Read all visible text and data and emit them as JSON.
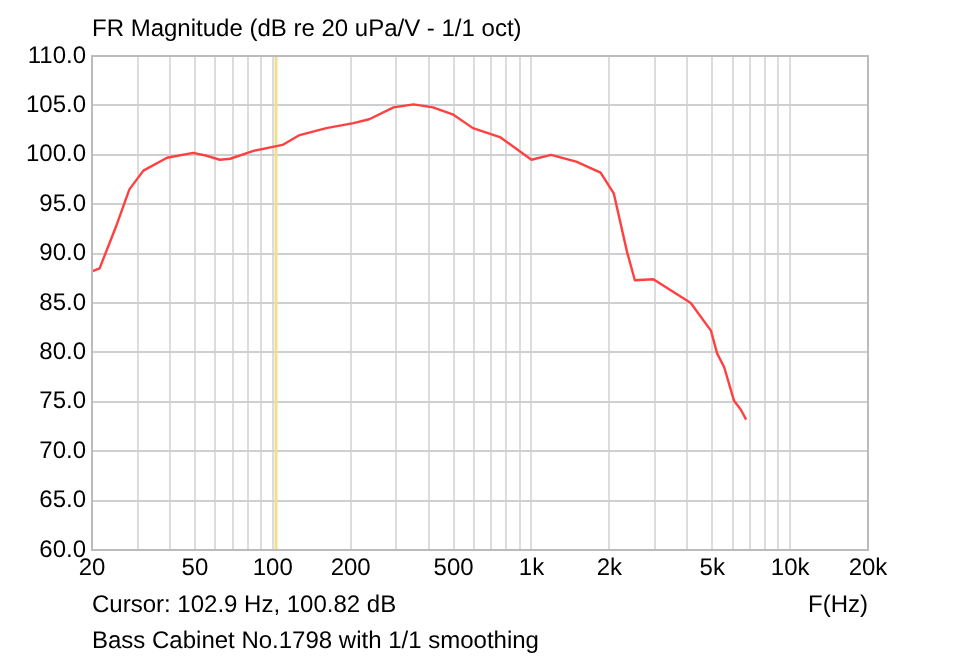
{
  "chart_data": {
    "type": "line",
    "title": "FR Magnitude (dB re 20 uPa/V - 1/1 oct)",
    "xlabel": "F(Hz)",
    "annotations": [
      "Cursor: 102.9 Hz, 100.82 dB",
      "Bass Cabinet No.1798 with 1/1 smoothing"
    ],
    "x": [
      20,
      21.4,
      24.9,
      27.9,
      31.6,
      39,
      49.2,
      55.6,
      62.4,
      68.5,
      84.2,
      100,
      109,
      127,
      161,
      205,
      236,
      293,
      350,
      416,
      496,
      594,
      755,
      1000,
      1190,
      1490,
      1850,
      2080,
      2340,
      2510,
      2960,
      4130,
      4940,
      5220,
      5560,
      6070,
      6450,
      6760
    ],
    "series": [
      {
        "color": "#ff4040",
        "values": [
          88.2,
          88.5,
          92.9,
          96.5,
          98.4,
          99.7,
          100.2,
          99.9,
          99.5,
          99.6,
          100.4,
          100.8,
          101.0,
          102.0,
          102.7,
          103.2,
          103.6,
          104.8,
          105.1,
          104.8,
          104.1,
          102.7,
          101.8,
          99.5,
          100.0,
          99.3,
          98.2,
          96.1,
          90.2,
          87.3,
          87.4,
          85.0,
          82.2,
          79.9,
          78.5,
          75.1,
          74.2,
          73.2
        ]
      }
    ],
    "log": "x",
    "xlim": [
      20,
      20000
    ],
    "xticks": [
      {
        "value": 20,
        "label": "20"
      },
      {
        "value": 30,
        "label": null
      },
      {
        "value": 40,
        "label": null
      },
      {
        "value": 50,
        "label": "50"
      },
      {
        "value": 60,
        "label": null
      },
      {
        "value": 70,
        "label": null
      },
      {
        "value": 80,
        "label": null
      },
      {
        "value": 90,
        "label": null
      },
      {
        "value": 100,
        "label": "100"
      },
      {
        "value": 200,
        "label": "200"
      },
      {
        "value": 300,
        "label": null
      },
      {
        "value": 400,
        "label": null
      },
      {
        "value": 500,
        "label": "500"
      },
      {
        "value": 600,
        "label": null
      },
      {
        "value": 700,
        "label": null
      },
      {
        "value": 800,
        "label": null
      },
      {
        "value": 900,
        "label": null
      },
      {
        "value": 1000,
        "label": "1k"
      },
      {
        "value": 2000,
        "label": "2k"
      },
      {
        "value": 3000,
        "label": null
      },
      {
        "value": 4000,
        "label": null
      },
      {
        "value": 5000,
        "label": "5k"
      },
      {
        "value": 6000,
        "label": null
      },
      {
        "value": 7000,
        "label": null
      },
      {
        "value": 8000,
        "label": null
      },
      {
        "value": 9000,
        "label": null
      },
      {
        "value": 10000,
        "label": "10k"
      },
      {
        "value": 20000,
        "label": "20k"
      }
    ],
    "ylim": [
      60,
      110
    ],
    "yticks": [
      {
        "value": 60,
        "label": "60.0"
      },
      {
        "value": 65,
        "label": "65.0"
      },
      {
        "value": 70,
        "label": "70.0"
      },
      {
        "value": 75,
        "label": "75.0"
      },
      {
        "value": 80,
        "label": "80.0"
      },
      {
        "value": 85,
        "label": "85.0"
      },
      {
        "value": 90,
        "label": "90.0"
      },
      {
        "value": 95,
        "label": "95.0"
      },
      {
        "value": 100,
        "label": "100.0"
      },
      {
        "value": 105,
        "label": "105.0"
      },
      {
        "value": 110,
        "label": "110.0"
      }
    ],
    "ref_lines": [
      {
        "axis": "x",
        "value": 102.9,
        "color": "#f0e08c"
      }
    ],
    "grid": true,
    "marker": "none",
    "line_style": "solid"
  }
}
